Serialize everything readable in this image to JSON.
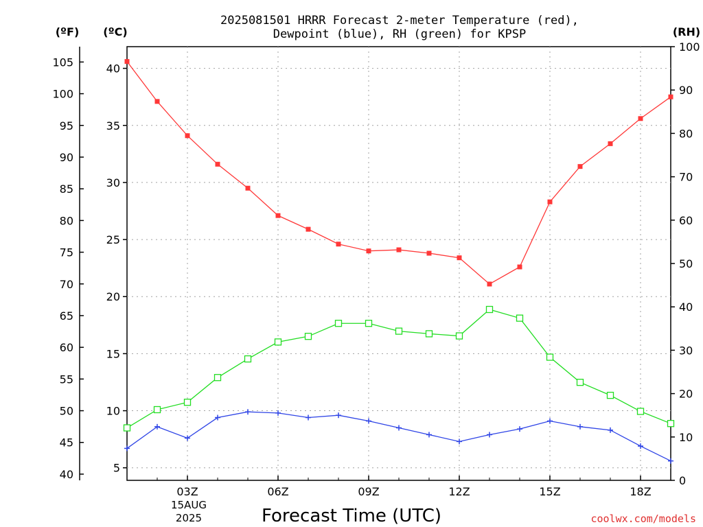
{
  "chart_data": {
    "type": "line",
    "title_line1": "2025081501 HRRR Forecast 2-meter Temperature (red),",
    "title_line2": "Dewpoint (blue), RH (green) for KPSP",
    "xlabel": "Forecast Time (UTC)",
    "x_date_line1": "15AUG",
    "x_date_line2": "2025",
    "watermark": "coolwx.com/models",
    "left_outer_unit": "(ºF)",
    "left_inner_unit": "(ºC)",
    "right_unit": "(RH)",
    "x_hours": [
      1,
      2,
      3,
      4,
      5,
      6,
      7,
      8,
      9,
      10,
      11,
      12,
      13,
      14,
      15,
      16,
      17,
      18,
      19
    ],
    "x_range": [
      1,
      19
    ],
    "x_ticks": [
      {
        "hour": 3,
        "label": "03Z"
      },
      {
        "hour": 6,
        "label": "06Z"
      },
      {
        "hour": 9,
        "label": "09Z"
      },
      {
        "hour": 12,
        "label": "12Z"
      },
      {
        "hour": 15,
        "label": "15Z"
      },
      {
        "hour": 18,
        "label": "18Z"
      }
    ],
    "celsius_range": [
      3.9,
      41.9
    ],
    "celsius_ticks": [
      5,
      10,
      15,
      20,
      25,
      30,
      35,
      40
    ],
    "fahrenheit_ticks": [
      40,
      45,
      50,
      55,
      60,
      65,
      70,
      75,
      80,
      85,
      90,
      95,
      100,
      105
    ],
    "rh_range": [
      0,
      100
    ],
    "rh_ticks": [
      0,
      10,
      20,
      30,
      40,
      50,
      60,
      70,
      80,
      90,
      100
    ],
    "grid": true,
    "series": [
      {
        "name": "Temperature",
        "axis": "celsius",
        "color": "#ff3838",
        "marker": "filled-square",
        "values": [
          40.6,
          37.1,
          34.1,
          31.6,
          29.5,
          27.1,
          25.9,
          24.6,
          24.0,
          24.1,
          23.8,
          23.4,
          21.1,
          22.6,
          28.3,
          31.4,
          33.4,
          35.6,
          37.5
        ]
      },
      {
        "name": "Dewpoint",
        "axis": "celsius",
        "color": "#2e44e6",
        "marker": "plus",
        "values": [
          6.7,
          8.6,
          7.6,
          9.4,
          9.9,
          9.8,
          9.4,
          9.6,
          9.1,
          8.5,
          7.9,
          7.3,
          7.9,
          8.4,
          9.1,
          8.6,
          8.3,
          6.9,
          5.6
        ]
      },
      {
        "name": "RH",
        "axis": "rh",
        "color": "#22dd22",
        "marker": "open-square",
        "values": [
          12.1,
          16.3,
          18.0,
          23.7,
          28.0,
          31.9,
          33.2,
          36.2,
          36.2,
          34.4,
          33.8,
          33.3,
          39.4,
          37.4,
          28.4,
          22.6,
          19.6,
          15.9,
          13.1
        ]
      }
    ]
  }
}
